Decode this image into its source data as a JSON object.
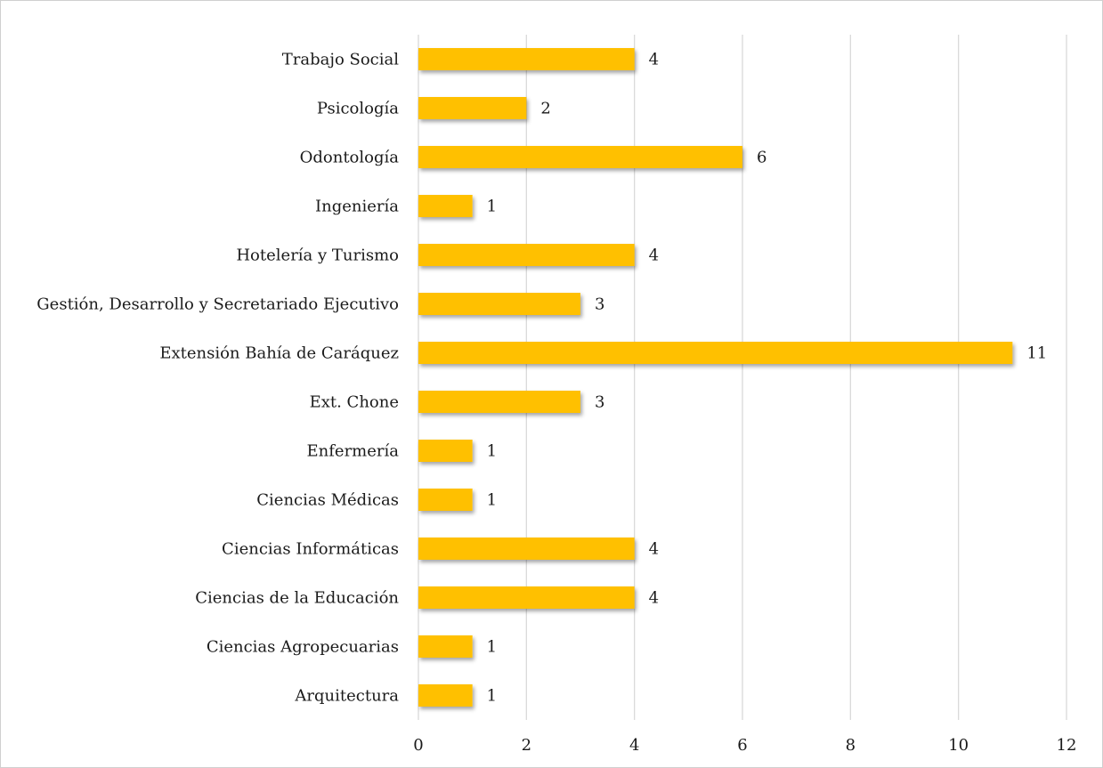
{
  "chart_data": {
    "type": "bar",
    "orientation": "horizontal",
    "categories": [
      "Trabajo Social",
      "Psicología",
      "Odontología",
      "Ingeniería",
      "Hotelería y Turismo",
      "Gestión, Desarrollo y Secretariado Ejecutivo",
      "Extensión Bahía de Caráquez",
      "Ext. Chone",
      "Enfermería",
      "Ciencias Médicas",
      "Ciencias Informáticas",
      "Ciencias de la Educación",
      "Ciencias Agropecuarias",
      "Arquitectura"
    ],
    "values": [
      4,
      2,
      6,
      1,
      4,
      3,
      11,
      3,
      1,
      1,
      4,
      4,
      1,
      1
    ],
    "xlim": [
      0,
      12
    ],
    "xticks": [
      0,
      2,
      4,
      6,
      8,
      10,
      12
    ],
    "grid": true,
    "data_labels": true,
    "bar_color": "#FFC000",
    "title": "",
    "xlabel": "",
    "ylabel": ""
  }
}
